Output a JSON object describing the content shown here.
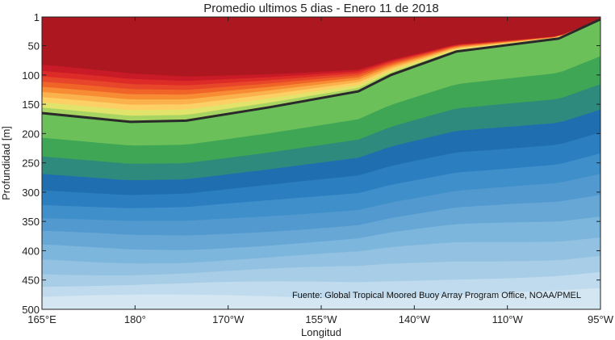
{
  "chart_data": {
    "type": "contour",
    "title": "Promedio ultimos 5 dias - Enero 11 de 2018",
    "xlabel": "Longitud",
    "ylabel": "Profundidad [m]",
    "source": "Fuente: Global Tropical Moored Buoy Array Program Office, NOAA/PMEL",
    "x_tick_labels": [
      "165°E",
      "180°",
      "170°W",
      "155°W",
      "140°W",
      "110°W",
      "95°W"
    ],
    "y_tick_labels": [
      "1",
      "50",
      "100",
      "150",
      "200",
      "250",
      "300",
      "350",
      "400",
      "450",
      "500"
    ],
    "ylim": [
      1,
      500
    ],
    "y_direction": "depth increasing downward",
    "grid": false,
    "color_levels": [
      "#ad171f",
      "#c81a27",
      "#dd2b27",
      "#e8462a",
      "#f06428",
      "#f78c35",
      "#fbb14c",
      "#fdd066",
      "#e2e36a",
      "#a8d562",
      "#6cc05a",
      "#3ea654",
      "#2e8a7c",
      "#1f6fb0",
      "#2b7ec0",
      "#3f8fca",
      "#5299cf",
      "#67a7d5",
      "#7db6dc",
      "#93c1e1",
      "#a8cde6",
      "#c0dbed",
      "#d3e6f2"
    ],
    "thermocline_line": {
      "x_tick_positions": [
        0,
        0.95,
        1.55,
        2.45,
        3.4,
        3.75,
        4.45,
        5.55,
        6.0
      ],
      "depth": [
        165,
        180,
        178,
        155,
        128,
        100,
        60,
        38,
        5
      ]
    }
  }
}
